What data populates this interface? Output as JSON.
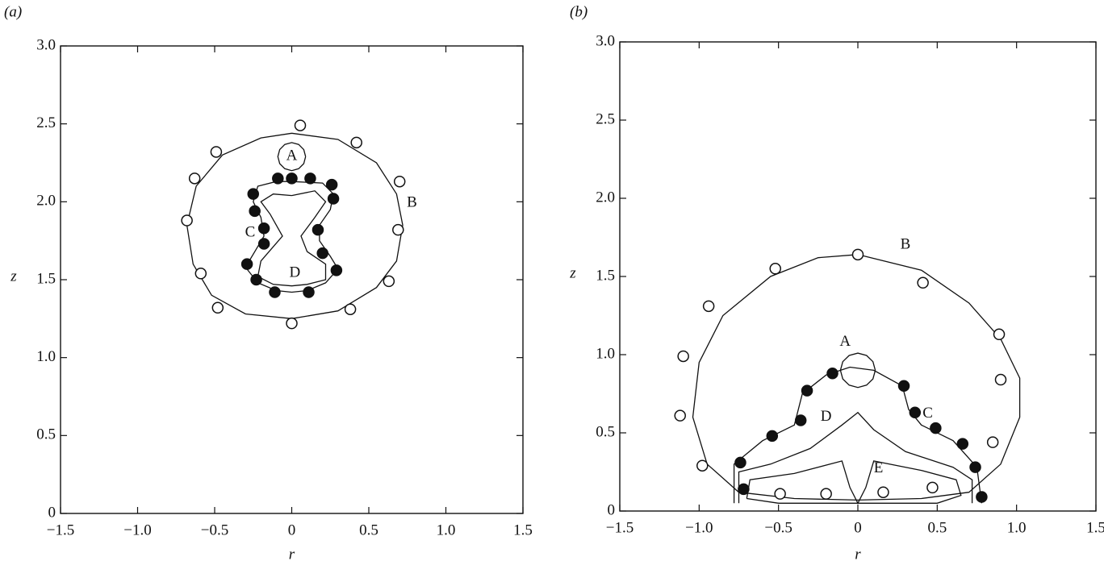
{
  "chart_data": [
    {
      "type": "scatter",
      "panel_label": "(a)",
      "xlabel": "r",
      "ylabel": "z",
      "xlim": [
        -1.5,
        1.5
      ],
      "ylim": [
        0,
        3.0
      ],
      "xticks": [
        {
          "value": -1.5,
          "label": "−1.5"
        },
        {
          "value": -1.0,
          "label": "−1.0"
        },
        {
          "value": -0.5,
          "label": "−0.5"
        },
        0,
        0.5,
        {
          "value": 1.0,
          "label": "1.0"
        },
        1.5
      ],
      "yticks": [
        0,
        0.5,
        {
          "value": 1.0,
          "label": "1.0"
        },
        1.5,
        {
          "value": 2.0,
          "label": "2.0"
        },
        2.5,
        {
          "value": 3.0,
          "label": "3.0"
        }
      ],
      "color": "#111111",
      "series": [
        {
          "kind": "curve",
          "x": [
            0,
            0.3,
            0.55,
            0.68,
            0.72,
            0.68,
            0.55,
            0.3,
            0,
            -0.3,
            -0.52,
            -0.64,
            -0.68,
            -0.62,
            -0.45,
            -0.2,
            0
          ],
          "y": [
            2.44,
            2.4,
            2.25,
            2.05,
            1.85,
            1.62,
            1.45,
            1.3,
            1.25,
            1.28,
            1.4,
            1.6,
            1.85,
            2.1,
            2.3,
            2.41,
            2.44
          ]
        },
        {
          "kind": "curve",
          "x": [
            0.09,
            0.078,
            0.045,
            0,
            -0.045,
            -0.078,
            -0.09,
            -0.078,
            -0.045,
            0,
            0.045,
            0.078,
            0.09
          ],
          "y": [
            2.29,
            2.335,
            2.368,
            2.38,
            2.368,
            2.335,
            2.29,
            2.245,
            2.212,
            2.2,
            2.212,
            2.245,
            2.29
          ]
        },
        {
          "kind": "curve",
          "x": [
            0,
            0.2,
            0.27,
            0.25,
            0.18,
            0.18,
            0.25,
            0.3,
            0.22,
            0.1,
            0,
            -0.1,
            -0.22,
            -0.3,
            -0.24,
            -0.18,
            -0.2,
            -0.25,
            -0.22,
            -0.1,
            0
          ],
          "y": [
            2.13,
            2.12,
            2.05,
            1.95,
            1.85,
            1.75,
            1.65,
            1.57,
            1.48,
            1.43,
            1.42,
            1.43,
            1.48,
            1.58,
            1.68,
            1.78,
            1.9,
            2.0,
            2.1,
            2.13,
            2.13
          ]
        },
        {
          "kind": "curve",
          "x": [
            0,
            0.15,
            0.22,
            0.15,
            0.06,
            0.1,
            0.22,
            0.22,
            0.1,
            0,
            -0.12,
            -0.22,
            -0.2,
            -0.06,
            -0.14,
            -0.2,
            -0.12,
            0
          ],
          "y": [
            2.04,
            2.07,
            2.0,
            1.9,
            1.78,
            1.68,
            1.6,
            1.5,
            1.47,
            1.46,
            1.47,
            1.52,
            1.62,
            1.78,
            1.92,
            2.0,
            2.05,
            2.04
          ]
        },
        {
          "kind": "open",
          "x": [
            0.055,
            -0.49,
            0.42,
            -0.63,
            0.7,
            -0.68,
            0.69,
            -0.59,
            0.63,
            -0.48,
            0.38,
            0
          ],
          "y": [
            2.49,
            2.32,
            2.38,
            2.15,
            2.13,
            1.88,
            1.82,
            1.54,
            1.49,
            1.32,
            1.31,
            1.22
          ]
        },
        {
          "kind": "filled",
          "x": [
            -0.09,
            0,
            0.12,
            -0.25,
            0.26,
            0.27,
            -0.24,
            -0.18,
            0.17,
            -0.18,
            0.2,
            -0.29,
            0.29,
            -0.23,
            -0.11,
            0.11
          ],
          "y": [
            2.15,
            2.15,
            2.15,
            2.05,
            2.11,
            2.02,
            1.94,
            1.83,
            1.82,
            1.73,
            1.67,
            1.6,
            1.56,
            1.5,
            1.42,
            1.42
          ]
        }
      ],
      "annotations": [
        {
          "text": "A",
          "x": 0,
          "y": 2.29
        },
        {
          "text": "B",
          "x": 0.78,
          "y": 1.99
        },
        {
          "text": "C",
          "x": -0.27,
          "y": 1.8
        },
        {
          "text": "D",
          "x": 0.02,
          "y": 1.54
        }
      ]
    },
    {
      "type": "scatter",
      "panel_label": "(b)",
      "xlabel": "r",
      "ylabel": "z",
      "xlim": [
        -1.5,
        1.5
      ],
      "ylim": [
        0,
        3.0
      ],
      "xticks": [
        {
          "value": -1.5,
          "label": "−1.5"
        },
        {
          "value": -1.0,
          "label": "−1.0"
        },
        {
          "value": -0.5,
          "label": "−0.5"
        },
        0,
        0.5,
        {
          "value": 1.0,
          "label": "1.0"
        },
        1.5
      ],
      "yticks": [
        0,
        0.5,
        {
          "value": 1.0,
          "label": "1.0"
        },
        1.5,
        {
          "value": 2.0,
          "label": "2.0"
        },
        2.5,
        {
          "value": 3.0,
          "label": "3.0"
        }
      ],
      "color": "#111111",
      "series": [
        {
          "kind": "curve",
          "x": [
            0,
            0.4,
            0.7,
            0.9,
            1.02,
            1.02,
            0.9,
            0.7,
            0.4,
            0,
            -0.4,
            -0.75,
            -0.95,
            -1.04,
            -1.0,
            -0.85,
            -0.55,
            -0.25,
            0
          ],
          "y": [
            1.64,
            1.54,
            1.33,
            1.1,
            0.85,
            0.6,
            0.3,
            0.12,
            0.08,
            0.07,
            0.08,
            0.12,
            0.3,
            0.6,
            0.95,
            1.25,
            1.5,
            1.62,
            1.64
          ]
        },
        {
          "kind": "curve",
          "x": [
            0.11,
            0.095,
            0.055,
            0,
            -0.055,
            -0.095,
            -0.11,
            -0.095,
            -0.055,
            0,
            0.055,
            0.095,
            0.11
          ],
          "y": [
            0.9,
            0.955,
            0.995,
            1.01,
            0.995,
            0.955,
            0.9,
            0.845,
            0.805,
            0.79,
            0.805,
            0.845,
            0.9
          ]
        },
        {
          "kind": "curve",
          "x": [
            -0.78,
            -0.78,
            -0.6,
            -0.4,
            -0.35,
            -0.2,
            -0.05,
            0.1,
            0.28,
            0.32,
            0.4,
            0.6,
            0.75,
            0.78
          ],
          "y": [
            0.05,
            0.3,
            0.45,
            0.55,
            0.75,
            0.87,
            0.92,
            0.9,
            0.8,
            0.65,
            0.55,
            0.45,
            0.28,
            0.05
          ]
        },
        {
          "kind": "curve",
          "x": [
            -0.75,
            -0.75,
            -0.55,
            -0.3,
            -0.1,
            0,
            0.1,
            0.3,
            0.6,
            0.72,
            0.72
          ],
          "y": [
            0.05,
            0.25,
            0.3,
            0.4,
            0.55,
            0.63,
            0.52,
            0.38,
            0.28,
            0.2,
            0.05
          ]
        },
        {
          "kind": "curve",
          "x": [
            -0.7,
            -0.68,
            -0.4,
            -0.1,
            -0.05,
            0,
            0.05,
            0.1,
            0.4,
            0.62,
            0.65,
            0.5,
            -0.5,
            -0.7
          ],
          "y": [
            0.08,
            0.2,
            0.24,
            0.32,
            0.15,
            0.05,
            0.15,
            0.32,
            0.26,
            0.2,
            0.1,
            0.05,
            0.05,
            0.08
          ]
        },
        {
          "kind": "open",
          "x": [
            0,
            -0.52,
            0.41,
            -0.94,
            0.89,
            -1.1,
            0.9,
            -1.12,
            0.85,
            -0.98,
            -0.49,
            -0.2,
            0.16,
            0.47
          ],
          "y": [
            1.64,
            1.55,
            1.46,
            1.31,
            1.13,
            0.99,
            0.84,
            0.61,
            0.44,
            0.29,
            0.11,
            0.11,
            0.12,
            0.15
          ]
        },
        {
          "kind": "filled",
          "x": [
            -0.16,
            0.29,
            -0.32,
            0.36,
            -0.36,
            0.49,
            -0.54,
            0.66,
            -0.74,
            0.74,
            -0.72,
            0.78
          ],
          "y": [
            0.88,
            0.8,
            0.77,
            0.63,
            0.58,
            0.53,
            0.48,
            0.43,
            0.31,
            0.28,
            0.14,
            0.09
          ]
        }
      ],
      "annotations": [
        {
          "text": "A",
          "x": -0.08,
          "y": 1.08
        },
        {
          "text": "B",
          "x": 0.3,
          "y": 1.7
        },
        {
          "text": "C",
          "x": 0.44,
          "y": 0.62
        },
        {
          "text": "D",
          "x": -0.2,
          "y": 0.6
        },
        {
          "text": "E",
          "x": 0.13,
          "y": 0.27
        }
      ]
    }
  ]
}
